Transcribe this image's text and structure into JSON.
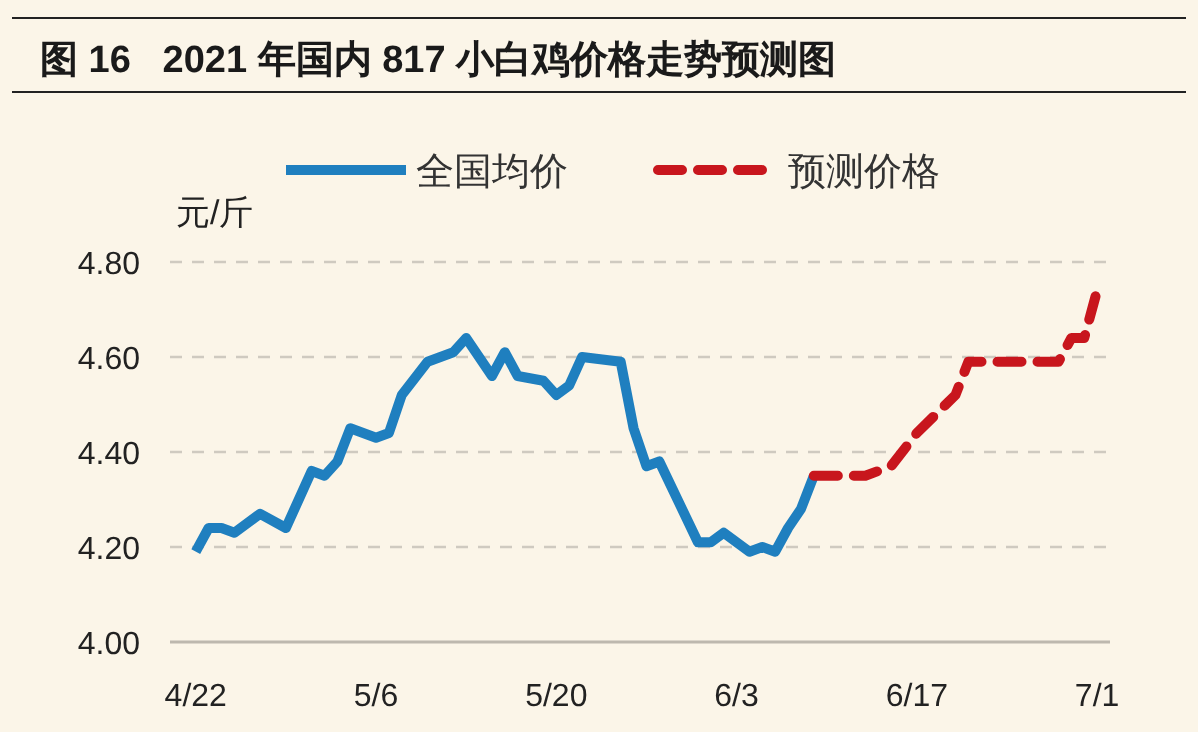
{
  "chart_data": {
    "type": "line",
    "title": "图 16   2021 年国内 817 小白鸡价格走势预测图",
    "ylabel": "元/斤",
    "series": [
      {
        "name": "全国均价",
        "color": "#1f7fbf",
        "line_style": "solid",
        "x": [
          "2021-04-22",
          "2021-04-23",
          "2021-04-24",
          "2021-04-25",
          "2021-04-27",
          "2021-04-29",
          "2021-05-01",
          "2021-05-02",
          "2021-05-03",
          "2021-05-04",
          "2021-05-06",
          "2021-05-07",
          "2021-05-08",
          "2021-05-10",
          "2021-05-12",
          "2021-05-13",
          "2021-05-15",
          "2021-05-16",
          "2021-05-17",
          "2021-05-19",
          "2021-05-20",
          "2021-05-21",
          "2021-05-22",
          "2021-05-25",
          "2021-05-26",
          "2021-05-27",
          "2021-05-28",
          "2021-05-31",
          "2021-06-01",
          "2021-06-02",
          "2021-06-04",
          "2021-06-05",
          "2021-06-06",
          "2021-06-07",
          "2021-06-08",
          "2021-06-09"
        ],
        "values": [
          4.19,
          4.24,
          4.24,
          4.23,
          4.27,
          4.24,
          4.36,
          4.35,
          4.38,
          4.45,
          4.43,
          4.44,
          4.52,
          4.59,
          4.61,
          4.64,
          4.56,
          4.61,
          4.56,
          4.55,
          4.52,
          4.54,
          4.6,
          4.59,
          4.45,
          4.37,
          4.38,
          4.21,
          4.21,
          4.23,
          4.19,
          4.2,
          4.19,
          4.24,
          4.28,
          4.35
        ]
      },
      {
        "name": "预测价格",
        "color": "#c8161d",
        "line_style": "dashed",
        "x": [
          "2021-06-09",
          "2021-06-13",
          "2021-06-15",
          "2021-06-17",
          "2021-06-20",
          "2021-06-21",
          "2021-06-28",
          "2021-06-29",
          "2021-06-30",
          "2021-07-01"
        ],
        "values": [
          4.35,
          4.35,
          4.37,
          4.44,
          4.52,
          4.59,
          4.59,
          4.64,
          4.64,
          4.74
        ]
      }
    ],
    "xlim": [
      "2021-04-20",
      "2021-07-02"
    ],
    "xticks": [
      {
        "value": "2021-04-22",
        "label": "4/22"
      },
      {
        "value": "2021-05-06",
        "label": "5/6"
      },
      {
        "value": "2021-05-20",
        "label": "5/20"
      },
      {
        "value": "2021-06-03",
        "label": "6/3"
      },
      {
        "value": "2021-06-17",
        "label": "6/17"
      },
      {
        "value": "2021-07-01",
        "label": "7/1"
      }
    ],
    "ylim": [
      4.0,
      4.8
    ],
    "yticks": [
      {
        "value": 4.0,
        "label": "4.00"
      },
      {
        "value": 4.2,
        "label": "4.20"
      },
      {
        "value": 4.4,
        "label": "4.40"
      },
      {
        "value": 4.6,
        "label": "4.60"
      },
      {
        "value": 4.8,
        "label": "4.80"
      }
    ],
    "grid": "y",
    "legend": "top"
  }
}
